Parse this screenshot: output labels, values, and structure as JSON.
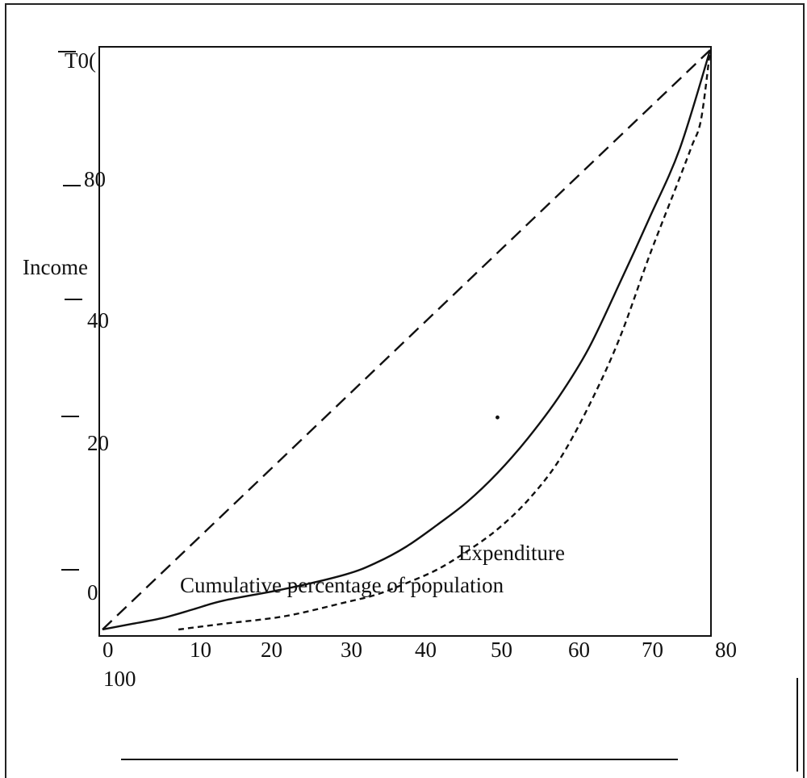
{
  "chart_data": {
    "type": "line",
    "title": "",
    "xlabel": "Cumulative percentage of population",
    "xlabel_secondary": "Expenditure",
    "ylabel": "Income",
    "x_ticks": [
      "0",
      "10",
      "20",
      "30",
      "40",
      "50",
      "60",
      "70",
      "80"
    ],
    "x_extra_label": "100",
    "y_ticks": [
      "0",
      "20",
      "40",
      "80",
      "T0("
    ],
    "xlim": [
      0,
      100
    ],
    "ylim": [
      0,
      100
    ],
    "grid": false,
    "series": [
      {
        "style": "dashed-long",
        "color": "#111111",
        "x": [
          0,
          100
        ],
        "y": [
          0,
          100
        ]
      },
      {
        "style": "solid",
        "color": "#111111",
        "x": [
          0,
          5,
          10,
          15,
          20,
          30,
          40,
          45,
          50,
          55,
          60,
          65,
          70,
          75,
          80,
          85,
          90,
          95,
          100
        ],
        "y": [
          0,
          1,
          2,
          3.5,
          5,
          7,
          9.5,
          11.5,
          14.3,
          18,
          22,
          27,
          33,
          40,
          48.5,
          59.5,
          71,
          83,
          100
        ]
      },
      {
        "style": "dashed-short",
        "color": "#111111",
        "x": [
          12.5,
          20,
          30,
          40,
          45,
          50,
          55,
          60,
          65,
          70,
          75,
          80,
          85,
          90,
          95,
          97,
          98.5,
          100
        ],
        "y": [
          0,
          1,
          2.3,
          4.7,
          6,
          8,
          10.3,
          13.5,
          17.3,
          22.3,
          29,
          38.5,
          50,
          64.5,
          78,
          83.5,
          88,
          100
        ]
      }
    ],
    "annotations": [
      {
        "type": "point",
        "x": 65,
        "y": 36.6
      }
    ]
  }
}
